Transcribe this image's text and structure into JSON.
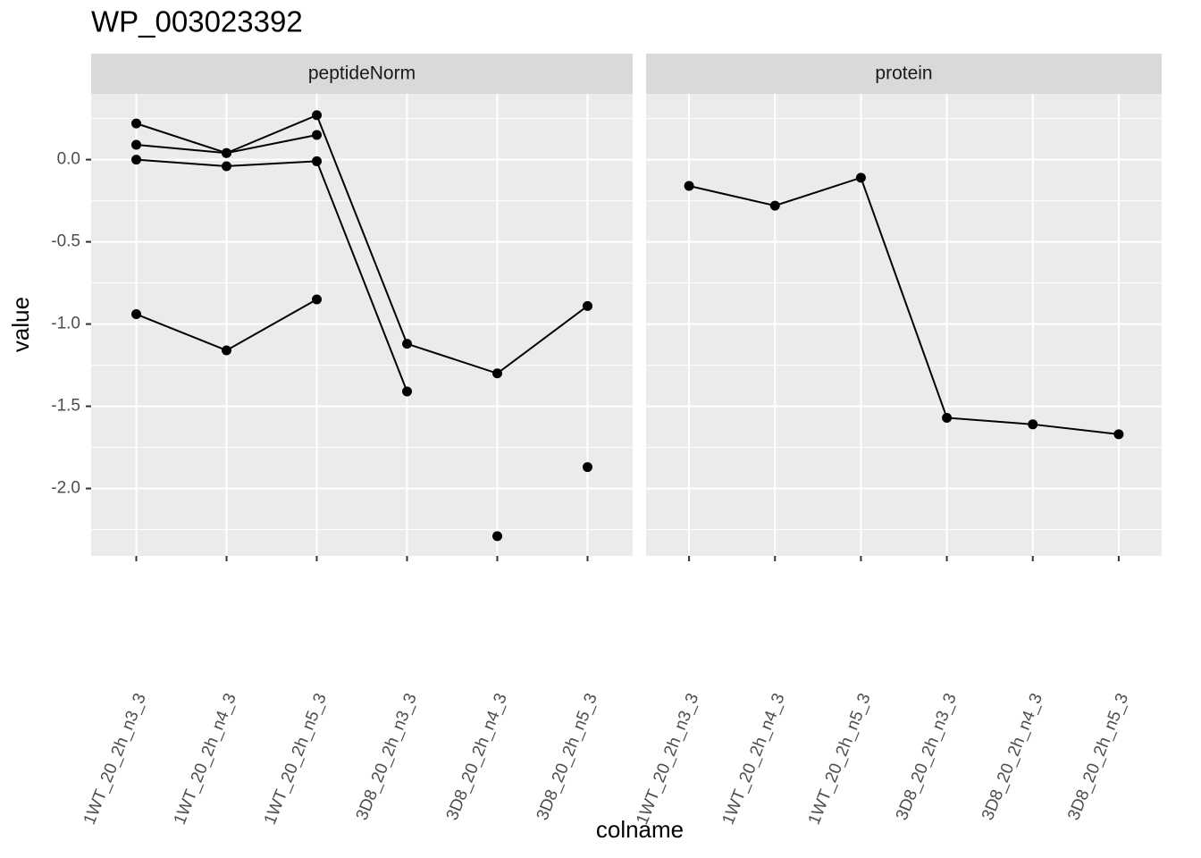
{
  "title": "WP_003023392",
  "xlabel": "colname",
  "ylabel": "value",
  "chart_data": [
    {
      "type": "line",
      "title": "peptideNorm",
      "categories": [
        "1WT_20_2h_n3_3",
        "1WT_20_2h_n4_3",
        "1WT_20_2h_n5_3",
        "3D8_20_2h_n3_3",
        "3D8_20_2h_n4_3",
        "3D8_20_2h_n5_3"
      ],
      "series": [
        {
          "color": "#000000",
          "values": [
            0.22,
            0.04,
            0.15,
            null,
            -2.29,
            null
          ]
        },
        {
          "color": "#000000",
          "values": [
            0.09,
            0.04,
            0.27,
            -1.12,
            -1.3,
            -0.89
          ]
        },
        {
          "color": "#000000",
          "values": [
            0.0,
            -0.04,
            -0.01,
            -1.41,
            null,
            -1.87
          ]
        },
        {
          "color": "#000000",
          "values": [
            -0.94,
            -1.16,
            -0.85,
            null,
            null,
            null
          ]
        }
      ],
      "ylim": [
        -2.41,
        0.4
      ],
      "yticks": [
        {
          "value": 0,
          "label": "0.0"
        },
        -0.5,
        {
          "value": -1,
          "label": "-1.0"
        },
        -1.5,
        {
          "value": -2,
          "label": "-2.0"
        }
      ],
      "grid": true
    },
    {
      "type": "line",
      "title": "protein",
      "categories": [
        "1WT_20_2h_n3_3",
        "1WT_20_2h_n4_3",
        "1WT_20_2h_n5_3",
        "3D8_20_2h_n3_3",
        "3D8_20_2h_n4_3",
        "3D8_20_2h_n5_3"
      ],
      "series": [
        {
          "color": "#000000",
          "values": [
            -0.16,
            -0.28,
            -0.11,
            -1.57,
            -1.61,
            -1.67
          ]
        }
      ],
      "ylim": [
        -2.41,
        0.4
      ],
      "yticks": [
        {
          "value": 0,
          "label": "0.0"
        },
        -0.5,
        {
          "value": -1,
          "label": "-1.0"
        },
        -1.5,
        {
          "value": -2,
          "label": "-2.0"
        }
      ],
      "grid": true
    }
  ]
}
